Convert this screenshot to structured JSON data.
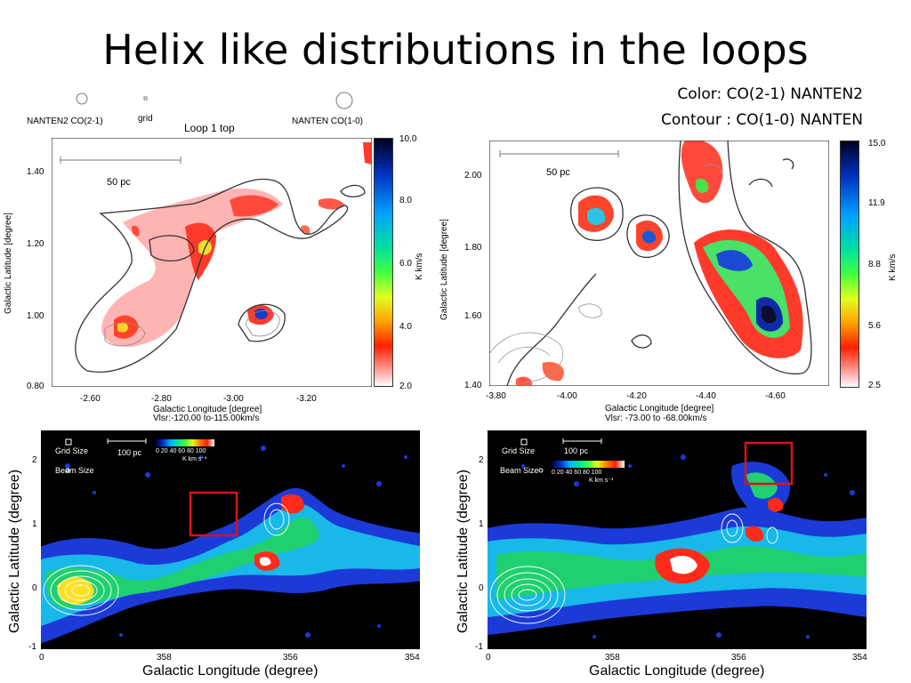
{
  "slide": {
    "title": "Helix like distributions in the loops",
    "legend_color": "Color: CO(2-1) NANTEN2",
    "legend_contour": "Contour : CO(1-0) NANTEN"
  },
  "top_left": {
    "label_left": "NANTEN2 CO(2-1)",
    "label_grid": "grid",
    "label_title": "Loop 1 top",
    "label_right": "NANTEN CO(1-0)",
    "scale": "50 pc",
    "ylabel": "Galactic Latitude [degree]",
    "xlabel": "Galactic Longitude [degree]",
    "vlsr": "Vlsr:-120.00 to-115.00km/s",
    "xticks": [
      "-2.60",
      "-2.80",
      "-3.00",
      "-3.20"
    ],
    "yticks": [
      "1.40",
      "1.20",
      "1.00",
      "0.80"
    ],
    "cbar_ticks": [
      "10.0",
      "8.0",
      "6.0",
      "4.0",
      "2.0"
    ],
    "cbar_label": "K km/s"
  },
  "top_right": {
    "scale": "50 pc",
    "ylabel": "Galactic Latitude [degree]",
    "xlabel": "Galactic Longitude [degree]",
    "vlsr": "Vlsr: -73.00 to -68.00km/s",
    "xticks": [
      "-3.80",
      "-4.00",
      "-4.20",
      "-4.40",
      "-4.60"
    ],
    "yticks": [
      "2.00",
      "1.80",
      "1.60",
      "1.40"
    ],
    "cbar_ticks": [
      "15.0",
      "11.9",
      "8.8",
      "5.6",
      "2.5"
    ],
    "cbar_label": "K km/s"
  },
  "bottom_left": {
    "grid_size": "Grid Size",
    "beam_size": "Beam Size",
    "scale": "100 pc",
    "cbar_ticks": "0 20 40 60 80 100",
    "cbar_unit": "K km s⁻¹",
    "ylabel": "Galactic Latitude (degree)",
    "xlabel": "Galactic Longitude (degree)",
    "yticks": [
      "2",
      "1",
      "0",
      "-1"
    ],
    "xticks": [
      "0",
      "358",
      "356",
      "354"
    ]
  },
  "bottom_right": {
    "grid_size": "Grid Size",
    "beam_size": "Beam Size",
    "scale": "100 pc",
    "cbar_ticks": "0 20 40 60 80 100",
    "cbar_unit": "K km s⁻¹",
    "ylabel": "Galactic Latitude (degree)",
    "xlabel": "Galactic Longitude (degree)",
    "yticks": [
      "2",
      "1",
      "0",
      "-1"
    ],
    "xticks": [
      "0",
      "358",
      "356",
      "354"
    ]
  },
  "colors": {
    "highlight_box": "#e01010",
    "map_background": "#000000"
  }
}
